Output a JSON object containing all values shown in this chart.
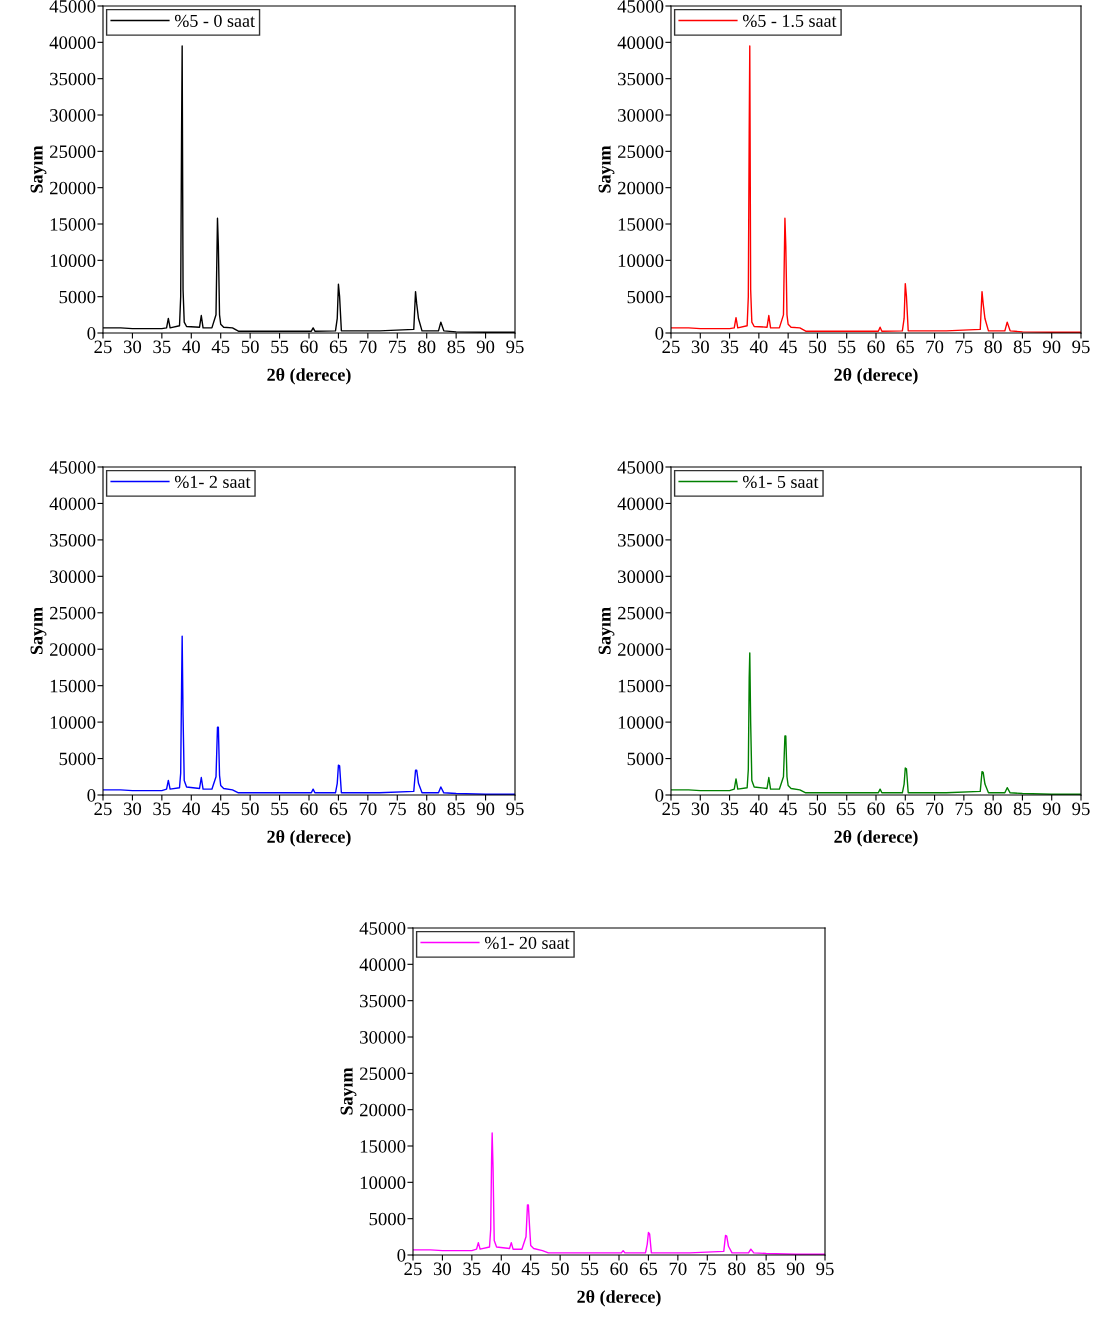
{
  "chart_data": [
    {
      "type": "line",
      "xlabel": "2θ (derece)",
      "ylabel": "Sayım",
      "xlim": [
        25,
        95
      ],
      "ylim": [
        0,
        45000
      ],
      "xticks": [
        25,
        30,
        35,
        40,
        45,
        50,
        55,
        60,
        65,
        70,
        75,
        80,
        85,
        90,
        95
      ],
      "yticks": [
        0,
        5000,
        10000,
        15000,
        20000,
        25000,
        30000,
        35000,
        40000,
        45000
      ],
      "legend": "top left",
      "grid": false,
      "x": [
        25,
        28,
        30,
        35,
        35.8,
        36.1,
        36.4,
        38.0,
        38.2,
        38.35,
        38.45,
        38.6,
        38.8,
        39.2,
        41.4,
        41.7,
        42.0,
        43.5,
        44.2,
        44.45,
        44.6,
        44.8,
        45.0,
        45.5,
        47,
        48,
        60.4,
        60.7,
        61.0,
        64.5,
        64.8,
        65.0,
        65.2,
        65.5,
        72.0,
        77.8,
        78.1,
        78.3,
        78.6,
        79.2,
        82.0,
        82.4,
        82.9,
        85,
        90,
        95
      ],
      "series": [
        {
          "name": "%5 - 0 saat",
          "color": "#000000",
          "values": [
            700,
            700,
            600,
            600,
            700,
            2000,
            700,
            1000,
            5000,
            27500,
            39500,
            6000,
            1500,
            900,
            800,
            2400,
            700,
            700,
            2500,
            15800,
            12000,
            2500,
            1200,
            800,
            700,
            250,
            250,
            700,
            250,
            300,
            2000,
            6700,
            5000,
            300,
            300,
            500,
            5700,
            4000,
            2000,
            300,
            300,
            1500,
            300,
            150,
            100,
            100
          ]
        }
      ]
    },
    {
      "type": "line",
      "xlabel": "2θ (derece)",
      "ylabel": "Sayım",
      "xlim": [
        25,
        95
      ],
      "ylim": [
        0,
        45000
      ],
      "xticks": [
        25,
        30,
        35,
        40,
        45,
        50,
        55,
        60,
        65,
        70,
        75,
        80,
        85,
        90,
        95
      ],
      "yticks": [
        0,
        5000,
        10000,
        15000,
        20000,
        25000,
        30000,
        35000,
        40000,
        45000
      ],
      "legend": "top left",
      "grid": false,
      "x": [
        25,
        28,
        30,
        35,
        35.8,
        36.1,
        36.4,
        38.0,
        38.2,
        38.35,
        38.45,
        38.6,
        38.8,
        39.2,
        41.4,
        41.7,
        42.0,
        43.5,
        44.2,
        44.45,
        44.6,
        44.8,
        45.0,
        45.5,
        47,
        48,
        60.4,
        60.7,
        61.0,
        64.5,
        64.8,
        65.0,
        65.2,
        65.5,
        72.0,
        77.8,
        78.1,
        78.3,
        78.6,
        79.2,
        82.0,
        82.4,
        82.9,
        85,
        90,
        95
      ],
      "series": [
        {
          "name": "%5 - 1.5 saat",
          "color": "#ff0000",
          "values": [
            700,
            700,
            600,
            600,
            700,
            2100,
            700,
            1000,
            5000,
            27500,
            39500,
            6000,
            1500,
            900,
            800,
            2400,
            700,
            700,
            2500,
            15800,
            12000,
            2500,
            1200,
            800,
            700,
            250,
            250,
            800,
            250,
            300,
            2000,
            6800,
            5000,
            300,
            300,
            500,
            5700,
            4000,
            2000,
            300,
            300,
            1500,
            300,
            150,
            100,
            100
          ]
        }
      ]
    },
    {
      "type": "line",
      "xlabel": "2θ (derece)",
      "ylabel": "Sayım",
      "xlim": [
        25,
        95
      ],
      "ylim": [
        0,
        45000
      ],
      "xticks": [
        25,
        30,
        35,
        40,
        45,
        50,
        55,
        60,
        65,
        70,
        75,
        80,
        85,
        90,
        95
      ],
      "yticks": [
        0,
        5000,
        10000,
        15000,
        20000,
        25000,
        30000,
        35000,
        40000,
        45000
      ],
      "legend": "top left",
      "grid": false,
      "x": [
        25,
        28,
        30,
        35,
        35.8,
        36.1,
        36.4,
        38.0,
        38.2,
        38.35,
        38.45,
        38.6,
        38.8,
        39.2,
        41.4,
        41.7,
        42.0,
        43.5,
        44.2,
        44.45,
        44.6,
        44.8,
        45.0,
        45.5,
        47,
        48,
        60.4,
        60.7,
        61.0,
        64.5,
        64.8,
        65.0,
        65.2,
        65.5,
        72.0,
        77.8,
        78.1,
        78.3,
        78.6,
        79.2,
        82.0,
        82.4,
        82.9,
        85,
        90,
        95
      ],
      "series": [
        {
          "name": "%1- 2 saat",
          "color": "#0000ff",
          "values": [
            700,
            700,
            600,
            600,
            800,
            2000,
            800,
            1000,
            3000,
            14800,
            21800,
            11000,
            2000,
            1100,
            900,
            2400,
            800,
            800,
            2500,
            9300,
            9300,
            2700,
            1300,
            900,
            700,
            300,
            300,
            800,
            300,
            300,
            1600,
            4100,
            4000,
            300,
            300,
            500,
            3400,
            3400,
            1600,
            300,
            300,
            1100,
            300,
            200,
            100,
            100
          ]
        }
      ]
    },
    {
      "type": "line",
      "xlabel": "2θ (derece)",
      "ylabel": "Sayım",
      "xlim": [
        25,
        95
      ],
      "ylim": [
        0,
        45000
      ],
      "xticks": [
        25,
        30,
        35,
        40,
        45,
        50,
        55,
        60,
        65,
        70,
        75,
        80,
        85,
        90,
        95
      ],
      "yticks": [
        0,
        5000,
        10000,
        15000,
        20000,
        25000,
        30000,
        35000,
        40000,
        45000
      ],
      "legend": "top left",
      "grid": false,
      "x": [
        25,
        28,
        30,
        35,
        35.8,
        36.1,
        36.4,
        38.0,
        38.2,
        38.35,
        38.45,
        38.6,
        38.8,
        39.2,
        41.4,
        41.7,
        42.0,
        43.5,
        44.2,
        44.45,
        44.6,
        44.8,
        45.0,
        45.5,
        47,
        48,
        60.4,
        60.7,
        61.0,
        64.5,
        64.8,
        65.0,
        65.2,
        65.5,
        72.0,
        77.8,
        78.1,
        78.3,
        78.6,
        79.2,
        82.0,
        82.4,
        82.9,
        85,
        90,
        95
      ],
      "series": [
        {
          "name": "%1- 5 saat",
          "color": "#008000",
          "values": [
            700,
            700,
            600,
            600,
            800,
            2200,
            800,
            1000,
            3500,
            16000,
            19500,
            10000,
            2000,
            1100,
            900,
            2400,
            800,
            800,
            2500,
            8100,
            8100,
            2500,
            1300,
            900,
            700,
            300,
            300,
            800,
            300,
            300,
            1500,
            3700,
            3600,
            300,
            300,
            500,
            3200,
            3100,
            1500,
            300,
            300,
            1000,
            300,
            200,
            100,
            100
          ]
        }
      ]
    },
    {
      "type": "line",
      "xlabel": "2θ (derece)",
      "ylabel": "Sayım",
      "xlim": [
        25,
        95
      ],
      "ylim": [
        0,
        45000
      ],
      "xticks": [
        25,
        30,
        35,
        40,
        45,
        50,
        55,
        60,
        65,
        70,
        75,
        80,
        85,
        90,
        95
      ],
      "yticks": [
        0,
        5000,
        10000,
        15000,
        20000,
        25000,
        30000,
        35000,
        40000,
        45000
      ],
      "legend": "top left",
      "grid": false,
      "x": [
        25,
        28,
        30,
        35,
        35.8,
        36.1,
        36.4,
        38.0,
        38.2,
        38.35,
        38.45,
        38.6,
        38.8,
        39.2,
        41.4,
        41.7,
        42.0,
        43.5,
        44.2,
        44.45,
        44.6,
        44.8,
        45.0,
        45.5,
        47,
        48,
        60.4,
        60.7,
        61.0,
        64.5,
        64.8,
        65.0,
        65.2,
        65.5,
        72.0,
        77.8,
        78.1,
        78.3,
        78.6,
        79.2,
        82.0,
        82.4,
        82.9,
        85,
        90,
        95
      ],
      "series": [
        {
          "name": "%1- 20 saat",
          "color": "#ff00ff",
          "values": [
            700,
            700,
            600,
            600,
            800,
            1700,
            800,
            1100,
            3500,
            13000,
            16800,
            12000,
            2000,
            1100,
            900,
            1700,
            800,
            800,
            2500,
            6900,
            6900,
            4000,
            1300,
            900,
            600,
            300,
            300,
            600,
            300,
            300,
            1500,
            3100,
            2900,
            300,
            300,
            500,
            2700,
            2600,
            1200,
            300,
            300,
            800,
            300,
            200,
            100,
            100
          ]
        }
      ]
    }
  ]
}
